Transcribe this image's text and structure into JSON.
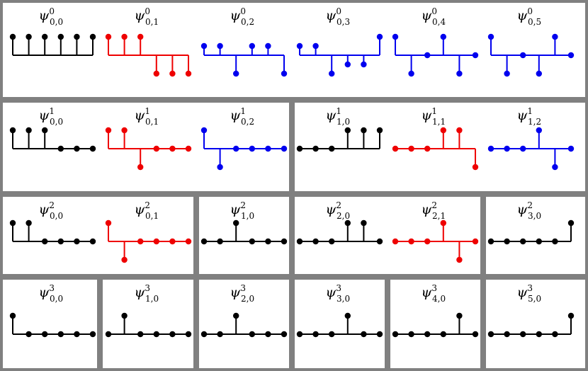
{
  "colors": {
    "black": "#000000",
    "red": "#ee0000",
    "blue": "#0000ee",
    "frame": "#808080"
  },
  "rows": [
    {
      "level": "0",
      "boxes": [
        {
          "plots": [
            {
              "label": {
                "sym": "ψ",
                "sup": "0",
                "sub": "0,0"
              },
              "color": "black",
              "values": [
                1,
                1,
                1,
                1,
                1,
                1
              ]
            },
            {
              "label": {
                "sym": "ψ",
                "sup": "0",
                "sub": "0,1"
              },
              "color": "red",
              "values": [
                1,
                1,
                1,
                -1,
                -1,
                -1
              ]
            },
            {
              "label": {
                "sym": "ψ",
                "sup": "0",
                "sub": "0,2"
              },
              "color": "blue",
              "values": [
                0.5,
                0.5,
                -1,
                0.5,
                0.5,
                -1
              ]
            },
            {
              "label": {
                "sym": "ψ",
                "sup": "0",
                "sub": "0,3"
              },
              "color": "blue",
              "values": [
                0.5,
                0.5,
                -1,
                -0.5,
                -0.5,
                1
              ]
            },
            {
              "label": {
                "sym": "ψ",
                "sup": "0",
                "sub": "0,4"
              },
              "color": "blue",
              "values": [
                1,
                -1,
                0,
                1,
                -1,
                0
              ]
            },
            {
              "label": {
                "sym": "ψ",
                "sup": "0",
                "sub": "0,5"
              },
              "color": "blue",
              "values": [
                1,
                -1,
                0,
                -1,
                1,
                0
              ]
            }
          ]
        }
      ]
    },
    {
      "level": "1",
      "boxes": [
        {
          "plots": [
            {
              "label": {
                "sym": "ψ",
                "sup": "1",
                "sub": "0,0"
              },
              "color": "black",
              "values": [
                1,
                1,
                1,
                0,
                0,
                0
              ]
            },
            {
              "label": {
                "sym": "ψ",
                "sup": "1",
                "sub": "0,1"
              },
              "color": "red",
              "values": [
                1,
                1,
                -1,
                0,
                0,
                0
              ]
            },
            {
              "label": {
                "sym": "ψ",
                "sup": "1",
                "sub": "0,2"
              },
              "color": "blue",
              "values": [
                1,
                -1,
                0,
                0,
                0,
                0
              ]
            }
          ]
        },
        {
          "plots": [
            {
              "label": {
                "sym": "ψ",
                "sup": "1",
                "sub": "1,0"
              },
              "color": "black",
              "values": [
                0,
                0,
                0,
                1,
                1,
                1
              ]
            },
            {
              "label": {
                "sym": "ψ",
                "sup": "1",
                "sub": "1,1"
              },
              "color": "red",
              "values": [
                0,
                0,
                0,
                1,
                1,
                -1
              ]
            },
            {
              "label": {
                "sym": "ψ",
                "sup": "1",
                "sub": "1,2"
              },
              "color": "blue",
              "values": [
                0,
                0,
                0,
                1,
                -1,
                0
              ]
            }
          ]
        }
      ]
    },
    {
      "level": "2",
      "boxes": [
        {
          "plots": [
            {
              "label": {
                "sym": "ψ",
                "sup": "2",
                "sub": "0,0"
              },
              "color": "black",
              "values": [
                1,
                1,
                0,
                0,
                0,
                0
              ]
            },
            {
              "label": {
                "sym": "ψ",
                "sup": "2",
                "sub": "0,1"
              },
              "color": "red",
              "values": [
                1,
                -1,
                0,
                0,
                0,
                0
              ]
            }
          ]
        },
        {
          "plots": [
            {
              "label": {
                "sym": "ψ",
                "sup": "2",
                "sub": "1,0"
              },
              "color": "black",
              "values": [
                0,
                0,
                1,
                0,
                0,
                0
              ]
            }
          ]
        },
        {
          "plots": [
            {
              "label": {
                "sym": "ψ",
                "sup": "2",
                "sub": "2,0"
              },
              "color": "black",
              "values": [
                0,
                0,
                0,
                1,
                1,
                0
              ]
            },
            {
              "label": {
                "sym": "ψ",
                "sup": "2",
                "sub": "2,1"
              },
              "color": "red",
              "values": [
                0,
                0,
                0,
                1,
                -1,
                0
              ]
            }
          ]
        },
        {
          "plots": [
            {
              "label": {
                "sym": "ψ",
                "sup": "2",
                "sub": "3,0"
              },
              "color": "black",
              "values": [
                0,
                0,
                0,
                0,
                0,
                1
              ]
            }
          ]
        }
      ]
    },
    {
      "level": "3",
      "boxes": [
        {
          "plots": [
            {
              "label": {
                "sym": "ψ",
                "sup": "3",
                "sub": "0,0"
              },
              "color": "black",
              "values": [
                1,
                0,
                0,
                0,
                0,
                0
              ]
            }
          ]
        },
        {
          "plots": [
            {
              "label": {
                "sym": "ψ",
                "sup": "3",
                "sub": "1,0"
              },
              "color": "black",
              "values": [
                0,
                1,
                0,
                0,
                0,
                0
              ]
            }
          ]
        },
        {
          "plots": [
            {
              "label": {
                "sym": "ψ",
                "sup": "3",
                "sub": "2,0"
              },
              "color": "black",
              "values": [
                0,
                0,
                1,
                0,
                0,
                0
              ]
            }
          ]
        },
        {
          "plots": [
            {
              "label": {
                "sym": "ψ",
                "sup": "3",
                "sub": "3,0"
              },
              "color": "black",
              "values": [
                0,
                0,
                0,
                1,
                0,
                0
              ]
            }
          ]
        },
        {
          "plots": [
            {
              "label": {
                "sym": "ψ",
                "sup": "3",
                "sub": "4,0"
              },
              "color": "black",
              "values": [
                0,
                0,
                0,
                0,
                1,
                0
              ]
            }
          ]
        },
        {
          "plots": [
            {
              "label": {
                "sym": "ψ",
                "sup": "3",
                "sub": "5,0"
              },
              "color": "black",
              "values": [
                0,
                0,
                0,
                0,
                0,
                1
              ]
            }
          ]
        }
      ]
    }
  ]
}
